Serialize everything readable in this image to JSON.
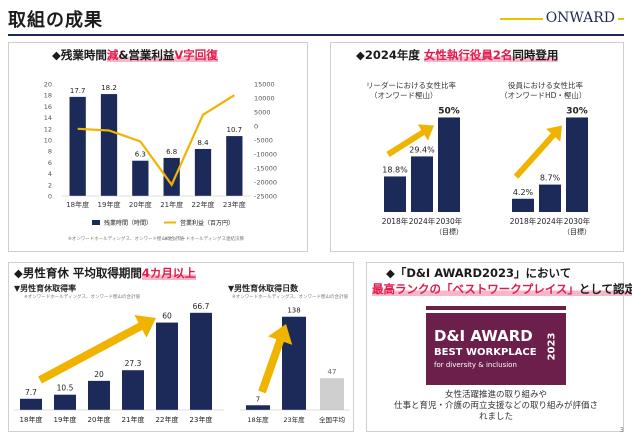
{
  "header": {
    "title": "取組の成果",
    "brand": "ONWARD",
    "page_number": "3"
  },
  "panel1": {
    "title_prefix": "◆残業時間",
    "title_red1": "減",
    "title_mid": "&営業利益",
    "title_red2": "V字回復",
    "legend_bar": "残業時間（時間）",
    "legend_line": "営業利益（百万円）",
    "footnote_left": "※オンワードホールディングス、オンワード樫山の合計値",
    "footnote_right": "※オンワードホールディングス連結決算"
  },
  "panel2": {
    "title_prefix": "◆2024年度",
    "title_red": "女性執行役員2名",
    "title_suffix": "同時登用",
    "left_caption1": "リーダーにおける女性比率",
    "left_caption2": "（オンワード樫山）",
    "right_caption1": "役員における女性比率",
    "right_caption2": "（オンワードHD・樫山）"
  },
  "panel3": {
    "title_prefix": "◆男性育休 平均取得期間",
    "title_red": "4カ月以上",
    "left_subtitle": "▼男性育休取得率",
    "left_footnote": "※オンワードホールディングス、オンワード樫山の合計値",
    "right_subtitle": "▼男性育休取得日数",
    "right_footnote": "※オンワードホールディングス、オンワード樫山の合計値"
  },
  "panel4": {
    "title_line1": "◆「D&I AWARD2023」において",
    "title_line2_red": "最高ランクの「ベストワークプレイス」",
    "title_line2_suffix": "として認定",
    "badge_line1": "D&I AWARD",
    "badge_line2": "BEST WORKPLACE",
    "badge_line3": "for diversity & inclusion",
    "badge_year": "2023",
    "desc_line1": "女性活躍推進の取り組みや",
    "desc_line2": "仕事と育児・介護の両立支援などの取り組みが評価されました"
  },
  "colors": {
    "navy": "#1c2a5a",
    "gold": "#f0b400",
    "red": "#e21b4d",
    "gray_bar": "#cfcfcf",
    "badge": "#6d1f4b"
  },
  "chart_data": [
    {
      "type": "bar",
      "title": "残業時間 & 営業利益",
      "categories": [
        "18年度",
        "19年度",
        "20年度",
        "21年度",
        "22年度",
        "23年度"
      ],
      "series": [
        {
          "name": "残業時間（時間）",
          "axis": "left",
          "values": [
            17.7,
            18.2,
            6.3,
            6.8,
            8.4,
            10.7
          ]
        },
        {
          "name": "営業利益（百万円）",
          "axis": "right",
          "type": "line",
          "values": [
            -1000,
            -1600,
            -5500,
            -21000,
            4000,
            11000
          ]
        }
      ],
      "left_axis": {
        "ylim": [
          0,
          20
        ],
        "ticks": [
          "20",
          "18",
          "16",
          "14",
          "12",
          "10",
          "8",
          "6",
          "4",
          "2",
          "0"
        ]
      },
      "right_axis": {
        "ylim": [
          -25000,
          15000
        ],
        "ticks": [
          "15000",
          "10000",
          "5000",
          "0",
          "-5000",
          "-10000",
          "-15000",
          "-20000",
          "-25000"
        ]
      }
    },
    {
      "type": "bar",
      "title": "リーダーにおける女性比率（オンワード樫山）",
      "categories": [
        "2018年",
        "2024年",
        "2030年(目標)"
      ],
      "values": [
        18.8,
        29.4,
        50
      ],
      "labels": [
        "18.8%",
        "29.4%",
        "50%"
      ],
      "ylim": [
        0,
        55
      ]
    },
    {
      "type": "bar",
      "title": "役員における女性比率（オンワードHD・樫山）",
      "categories": [
        "2018年",
        "2024年",
        "2030年(目標)"
      ],
      "values": [
        4.2,
        8.7,
        30
      ],
      "labels": [
        "4.2%",
        "8.7%",
        "30%"
      ],
      "ylim": [
        0,
        33
      ]
    },
    {
      "type": "bar",
      "title": "男性育休取得率",
      "categories": [
        "18年度",
        "19年度",
        "20年度",
        "21年度",
        "22年度",
        "23年度"
      ],
      "values": [
        7.7,
        10.5,
        20,
        27.3,
        60,
        66.7
      ],
      "labels": [
        "7.7",
        "10.5",
        "20",
        "27.3",
        "60",
        "66.7"
      ],
      "ylim": [
        0,
        70
      ]
    },
    {
      "type": "bar",
      "title": "男性育休取得日数",
      "categories": [
        "18年度",
        "23年度",
        "全国平均"
      ],
      "values": [
        7,
        138,
        47
      ],
      "labels": [
        "7",
        "138",
        "47"
      ],
      "ylim": [
        0,
        145
      ]
    }
  ]
}
